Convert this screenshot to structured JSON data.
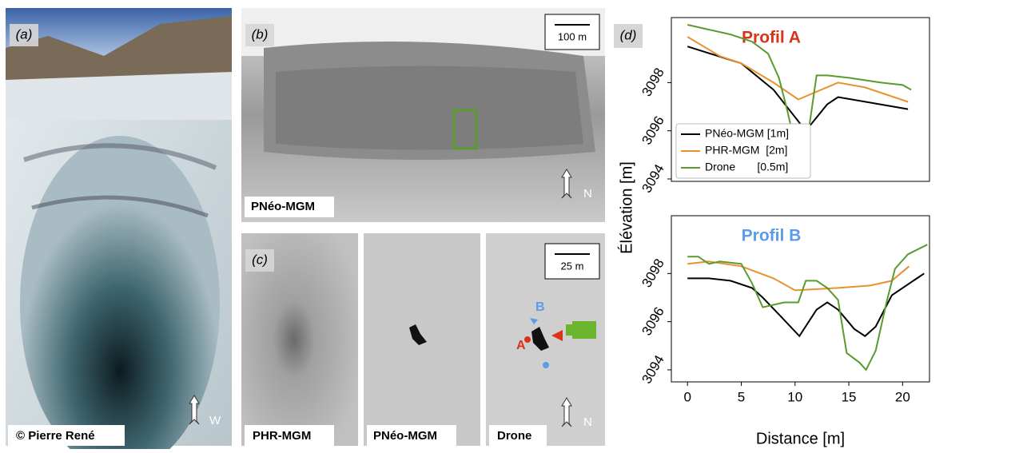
{
  "panels": {
    "a": {
      "label": "(a)",
      "credit": "© Pierre René",
      "arrow": "W"
    },
    "b": {
      "label": "(b)",
      "scale": "100 m",
      "source": "PNéo-MGM",
      "arrow": "N"
    },
    "c": {
      "label": "(c)",
      "scale": "25 m",
      "tiles": [
        "PHR-MGM",
        "PNéo-MGM",
        "Drone"
      ],
      "arrow": "N",
      "point_a": "A",
      "point_b": "B"
    },
    "d": {
      "label": "(d)"
    }
  },
  "chart_data": [
    {
      "type": "line",
      "title": "Profil A",
      "title_color": "#d9341a",
      "ylabel": "Élévation [m]",
      "xlim": [
        -1.5,
        22.5
      ],
      "ylim": [
        3093.9,
        3100.7
      ],
      "yticks": [
        3094,
        3096,
        3098
      ],
      "legend": "lower left",
      "grid": false,
      "series": [
        {
          "name": "PNéo-MGM [1m]",
          "color": "#000000",
          "x": [
            0,
            5,
            8,
            11,
            13,
            14,
            20.5
          ],
          "values": [
            3099.5,
            3098.8,
            3097.7,
            3096.0,
            3097.1,
            3097.4,
            3096.9
          ]
        },
        {
          "name": "PHR-MGM  [2m]",
          "color": "#e8922e",
          "x": [
            0,
            3,
            5,
            8,
            10.3,
            14,
            16.5,
            20.5
          ],
          "values": [
            3099.9,
            3099.1,
            3098.8,
            3098.0,
            3097.3,
            3098.0,
            3097.8,
            3097.2
          ]
        },
        {
          "name": "Drone       [0.5m]",
          "color": "#5a9a2e",
          "x": [
            0,
            2,
            4,
            6,
            7.5,
            8.5,
            9.3,
            10.3,
            11.2,
            12,
            13,
            15,
            18,
            20,
            20.8
          ],
          "values": [
            3100.4,
            3100.2,
            3100.0,
            3099.7,
            3099.2,
            3098.2,
            3096.8,
            3094.8,
            3095.8,
            3098.3,
            3098.3,
            3098.2,
            3098.0,
            3097.9,
            3097.7
          ]
        }
      ]
    },
    {
      "type": "line",
      "title": "Profil B",
      "title_color": "#5b9be8",
      "xlabel": "Distance [m]",
      "xlim": [
        -1.5,
        22.5
      ],
      "ylim": [
        3093.5,
        3100.4
      ],
      "xticks": [
        0,
        5,
        10,
        15,
        20
      ],
      "yticks": [
        3094,
        3096,
        3098
      ],
      "grid": false,
      "series": [
        {
          "color": "#000000",
          "x": [
            0,
            2,
            4,
            6,
            7,
            8.5,
            10.4,
            12,
            13,
            14,
            15.5,
            16.5,
            17.5,
            19,
            22
          ],
          "values": [
            3097.8,
            3097.8,
            3097.7,
            3097.4,
            3097.0,
            3096.3,
            3095.4,
            3096.5,
            3096.8,
            3096.5,
            3095.7,
            3095.4,
            3095.8,
            3097.1,
            3098.0
          ]
        },
        {
          "color": "#e8922e",
          "x": [
            0,
            2,
            5,
            8,
            10,
            14,
            17,
            19,
            20.6
          ],
          "values": [
            3098.4,
            3098.5,
            3098.3,
            3097.8,
            3097.3,
            3097.4,
            3097.5,
            3097.7,
            3098.3
          ]
        },
        {
          "color": "#5a9a2e",
          "x": [
            0,
            1,
            2,
            3,
            5,
            6,
            7,
            8,
            9,
            10.3,
            11,
            12,
            13,
            14,
            14.8,
            16,
            16.6,
            17.5,
            18.5,
            19.3,
            20.5,
            22.3
          ],
          "values": [
            3098.7,
            3098.7,
            3098.4,
            3098.5,
            3098.4,
            3097.6,
            3096.6,
            3096.7,
            3096.8,
            3096.8,
            3097.7,
            3097.7,
            3097.4,
            3096.9,
            3094.7,
            3094.3,
            3094.0,
            3094.8,
            3096.8,
            3098.2,
            3098.8,
            3099.2
          ]
        }
      ]
    }
  ]
}
